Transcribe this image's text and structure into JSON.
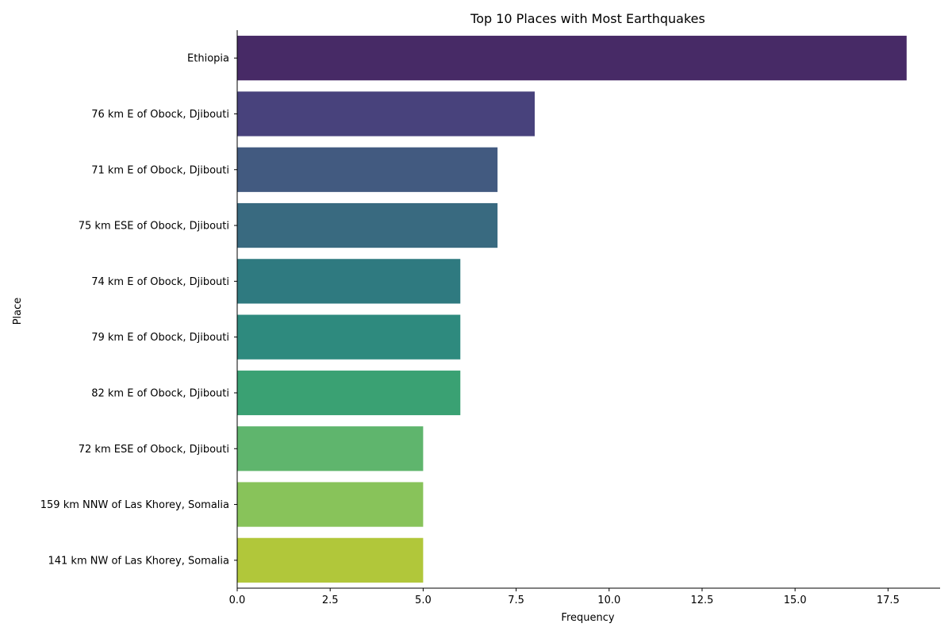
{
  "chart_data": {
    "type": "bar",
    "orientation": "horizontal",
    "title": "Top 10 Places with Most Earthquakes",
    "xlabel": "Frequency",
    "ylabel": "Place",
    "xlim": [
      0,
      18.9
    ],
    "x_ticks": [
      0.0,
      2.5,
      5.0,
      7.5,
      10.0,
      12.5,
      15.0,
      17.5
    ],
    "x_tick_labels": [
      "0.0",
      "2.5",
      "5.0",
      "7.5",
      "10.0",
      "12.5",
      "15.0",
      "17.5"
    ],
    "grid": false,
    "categories": [
      "Ethiopia",
      "76 km E of Obock, Djibouti",
      "71 km E of Obock, Djibouti",
      "75 km ESE of Obock, Djibouti",
      "74 km E of Obock, Djibouti",
      "79 km E of Obock, Djibouti",
      "82 km E of Obock, Djibouti",
      "72 km ESE of Obock, Djibouti",
      "159 km NNW of Las Khorey, Somalia",
      "141 km NW of Las Khorey, Somalia"
    ],
    "values": [
      18,
      8,
      7,
      7,
      6,
      6,
      6,
      5,
      5,
      5
    ],
    "colors": [
      "#472a66",
      "#48427c",
      "#425a80",
      "#396a80",
      "#2f7a80",
      "#2e8a7e",
      "#3aa173",
      "#5fb56d",
      "#88c35a",
      "#b1c73a"
    ]
  }
}
